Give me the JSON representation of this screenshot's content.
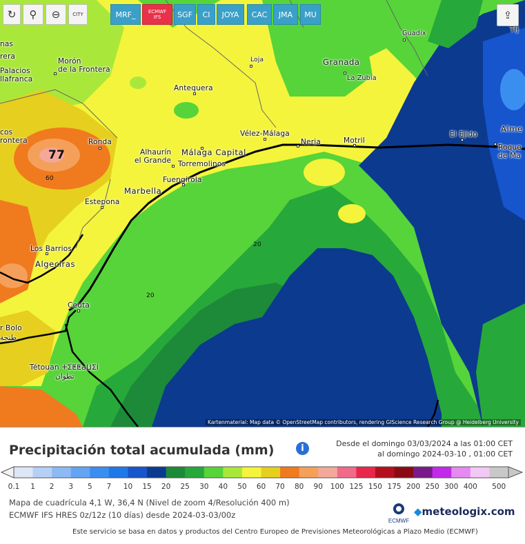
{
  "toolbar": {
    "refresh_icon": "refresh-icon",
    "location_icon": "map-pin-icon",
    "zoom_icon": "zoom-out-icon",
    "city_label": "CITY",
    "share_icon": "share-icon"
  },
  "models": [
    {
      "label": "MRF_"
    },
    {
      "label_line1": "ECMWF",
      "label_line2": "IFS",
      "active": true
    },
    {
      "label": "SGF"
    },
    {
      "label": "CI"
    },
    {
      "label": "JOYA"
    },
    {
      "label": "CAC"
    },
    {
      "label": "JMA"
    },
    {
      "label": "MU"
    }
  ],
  "places": {
    "nas": "nas",
    "rera": "rera",
    "palacios": "Palacios",
    "llafranca": "llafranca",
    "moron": "Morón",
    "moron2": "de la Frontera",
    "loja": "Loja",
    "granada": "Granada",
    "guadix": "Guadix",
    "la_zubia": "La Zubia",
    "antequera": "Antequera",
    "cos": "cos",
    "rontera": "rontera",
    "ronda": "Ronda",
    "velez": "Vélez-Málaga",
    "nerja": "Nerja",
    "motril": "Motril",
    "el_ejido": "El Ejido",
    "alme": "Alme",
    "roque": "Roque",
    "de_ma": "de Ma",
    "tij": "Tíj",
    "alhaurin": "Alhaurín",
    "el_grande": "el Grande",
    "malaga": "Málaga Capital",
    "torremolinos": "Torremolinos",
    "fuengirola": "Fuengirola",
    "marbella": "Marbella",
    "estepona": "Estepona",
    "los_barrios": "Los Barrios",
    "algeciras": "Algeciras",
    "ceuta": "Ceuta",
    "rbolo": "r Bolo",
    "tetouan": "Tétouan ⵜⵉⵟⵟⴰⵡⵉⵏ",
    "tetouan_ar": "تطوان",
    "ar1": "طنجة"
  },
  "contours": {
    "max_label": "77",
    "c60": "60",
    "c20a": "20",
    "c20b": "20"
  },
  "attribution": "Kartenmaterial: Map data © OpenStreetMap contributors, rendering GIScience Research Group @ Heidelberg University",
  "legend": {
    "title": "Precipitación total acumulada (mm)",
    "info_icon": "info-icon",
    "from": "Desde el domingo 03/03/2024 a  las 01:00 CET",
    "to": "al domingo 2024-03-10 , 01:00 CET",
    "scale": [
      {
        "v": "0.1",
        "c": "#dde6f7"
      },
      {
        "v": "1",
        "c": "#b6d0f5"
      },
      {
        "v": "2",
        "c": "#8dbaf4"
      },
      {
        "v": "3",
        "c": "#64a4f2"
      },
      {
        "v": "5",
        "c": "#3a8eef"
      },
      {
        "v": "7",
        "c": "#1f78e8"
      },
      {
        "v": "10",
        "c": "#1655cc"
      },
      {
        "v": "15",
        "c": "#0b3a8f"
      },
      {
        "v": "20",
        "c": "#1c8a38"
      },
      {
        "v": "25",
        "c": "#27a83a"
      },
      {
        "v": "30",
        "c": "#56d43a"
      },
      {
        "v": "40",
        "c": "#a9e83a"
      },
      {
        "v": "50",
        "c": "#f4f43c"
      },
      {
        "v": "60",
        "c": "#e6cf1e"
      },
      {
        "v": "70",
        "c": "#f07a1e"
      },
      {
        "v": "80",
        "c": "#f5a05a"
      },
      {
        "v": "90",
        "c": "#f4a89a"
      },
      {
        "v": "100",
        "c": "#f06a8a"
      },
      {
        "v": "125",
        "c": "#e8284a"
      },
      {
        "v": "150",
        "c": "#b40f1e"
      },
      {
        "v": "175",
        "c": "#8a0a14"
      },
      {
        "v": "200",
        "c": "#7a1a8a"
      },
      {
        "v": "250",
        "c": "#c22aea"
      },
      {
        "v": "300",
        "c": "#e58af0"
      },
      {
        "v": "400",
        "c": "#f2c8f5"
      },
      {
        "v": "500",
        "c": "#c8c8c8"
      }
    ],
    "meta1": "Mapa de cuadrícula 4,1 W, 36,4 N  (Nivel de zoom 4/Resolución 400 m)",
    "meta2": "ECMWF IFS HRES 0z/12z  (10 días)  desde 2024-03-03/00z",
    "ecmwf_label": "ECMWF",
    "brand": "meteologix.com",
    "footer": "Este servicio se basa en datos y productos del Centro Europeo de Previsiones Meteorológicas a Plazo Medio (ECMWF)"
  }
}
